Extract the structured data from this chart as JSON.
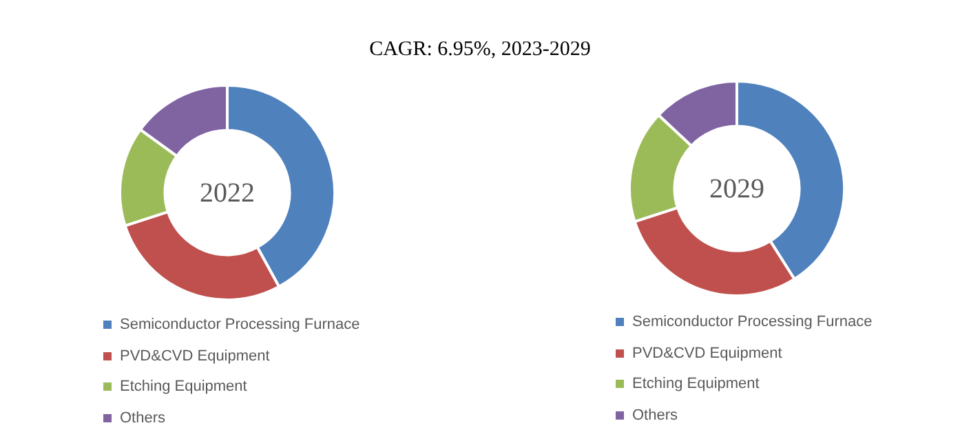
{
  "chart_data": [
    {
      "type": "donut",
      "title": "2022",
      "annotations": [
        "CAGR:  6.95%, 2023-2029"
      ],
      "legend": "bottom",
      "categories": [
        "Semiconductor Processing Furnace",
        "PVD&CVD Equipment",
        "Etching Equipment",
        "Others"
      ],
      "values": [
        42,
        28,
        15,
        15
      ],
      "colors": [
        "#4f81bd",
        "#c0504d",
        "#9bbb59",
        "#8064a2"
      ]
    },
    {
      "type": "donut",
      "title": "2029",
      "legend": "bottom",
      "categories": [
        "Semiconductor Processing Furnace",
        "PVD&CVD Equipment",
        "Etching Equipment",
        "Others"
      ],
      "values": [
        41,
        29,
        17,
        13
      ],
      "colors": [
        "#4f81bd",
        "#c0504d",
        "#9bbb59",
        "#8064a2"
      ]
    }
  ]
}
